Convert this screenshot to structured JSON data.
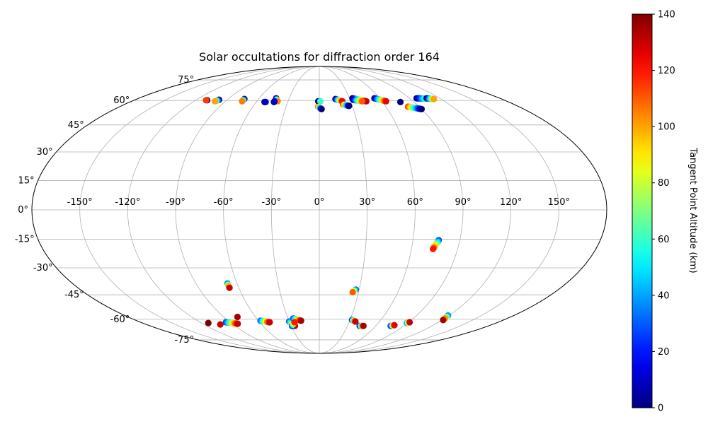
{
  "chart_data": {
    "type": "scatter",
    "projection": "mollweide",
    "title": "Solar occultations for diffraction order 164",
    "xlabel": "",
    "ylabel": "",
    "xlim": [
      -180,
      180
    ],
    "ylim": [
      -90,
      90
    ],
    "grid": true,
    "lon_ticks": [
      -150,
      -120,
      -90,
      -60,
      -30,
      0,
      30,
      60,
      90,
      120,
      150
    ],
    "lon_tick_labels": [
      "-150°",
      "-120°",
      "-90°",
      "-60°",
      "-30°",
      "0°",
      "30°",
      "60°",
      "90°",
      "120°",
      "150°"
    ],
    "lat_ticks": [
      -75,
      -60,
      -45,
      -30,
      -15,
      0,
      15,
      30,
      45,
      60,
      75
    ],
    "lat_tick_labels": [
      "-75°",
      "-60°",
      "-45°",
      "-30°",
      "-15°",
      "0°",
      "15°",
      "30°",
      "45°",
      "60°",
      "75°"
    ],
    "colorbar": {
      "label": "Tangent Point Altitude (km)",
      "colormap": "jet",
      "range": [
        0,
        140
      ],
      "ticks": [
        0,
        20,
        40,
        60,
        80,
        100,
        120,
        140
      ],
      "tick_labels": [
        "0",
        "20",
        "40",
        "60",
        "80",
        "100",
        "120",
        "140"
      ]
    },
    "tracks": [
      {
        "lon_start": -109,
        "lat_start": 60.2,
        "lon_end": -110,
        "lat_end": 60.2,
        "alt_start": 0,
        "alt_end": 115,
        "count": 2
      },
      {
        "lon_start": -98,
        "lat_start": 60.5,
        "lon_end": -100,
        "lat_end": 59.5,
        "alt_start": 0,
        "alt_end": 100,
        "count": 4
      },
      {
        "lon_start": -74,
        "lat_start": 61.0,
        "lon_end": -74,
        "lat_end": 59.5,
        "alt_start": 0,
        "alt_end": 105,
        "count": 4
      },
      {
        "lon_start": -52,
        "lat_start": 59.0,
        "lon_end": -51,
        "lat_end": 59.0,
        "alt_start": 0,
        "alt_end": 10,
        "count": 2
      },
      {
        "lon_start": -43,
        "lat_start": 61.5,
        "lon_end": -40,
        "lat_end": 59.5,
        "alt_start": 0,
        "alt_end": 105,
        "count": 6
      },
      {
        "lon_start": -43,
        "lat_start": 59.0,
        "lon_end": -43,
        "lat_end": 59.5,
        "alt_start": 0,
        "alt_end": 10,
        "count": 2
      },
      {
        "lon_start": -1,
        "lat_start": 59.5,
        "lon_end": 1,
        "lat_end": 59.5,
        "alt_start": 0,
        "alt_end": 60,
        "count": 2
      },
      {
        "lon_start": -1,
        "lat_start": 56.0,
        "lon_end": 2,
        "lat_end": 54.5,
        "alt_start": 110,
        "alt_end": 0,
        "count": 6
      },
      {
        "lon_start": 16,
        "lat_start": 61.0,
        "lon_end": 22,
        "lat_end": 59.5,
        "alt_start": 0,
        "alt_end": 125,
        "count": 7
      },
      {
        "lon_start": 22,
        "lat_start": 57.5,
        "lon_end": 27,
        "lat_end": 56.5,
        "alt_start": 115,
        "alt_end": 0,
        "count": 6
      },
      {
        "lon_start": 33,
        "lat_start": 61.5,
        "lon_end": 45,
        "lat_end": 59.5,
        "alt_start": 0,
        "alt_end": 130,
        "count": 14
      },
      {
        "lon_start": 33,
        "lat_start": 60.5,
        "lon_end": 41,
        "lat_end": 59.5,
        "alt_start": 0,
        "alt_end": 110,
        "count": 8
      },
      {
        "lon_start": 55,
        "lat_start": 61.5,
        "lon_end": 64,
        "lat_end": 59.5,
        "alt_start": 0,
        "alt_end": 125,
        "count": 12
      },
      {
        "lon_start": 77,
        "lat_start": 59.0,
        "lon_end": 77,
        "lat_end": 59.0,
        "alt_start": 0,
        "alt_end": 0,
        "count": 1
      },
      {
        "lon_start": 80,
        "lat_start": 56.0,
        "lon_end": 90,
        "lat_end": 54.5,
        "alt_start": 115,
        "alt_end": 0,
        "count": 12
      },
      {
        "lon_start": 97,
        "lat_start": 61.5,
        "lon_end": 111,
        "lat_end": 61.0,
        "alt_start": 0,
        "alt_end": 100,
        "count": 14
      },
      {
        "lon_start": 107,
        "lat_start": 61.5,
        "lon_end": 113,
        "lat_end": 61.0,
        "alt_start": 0,
        "alt_end": 100,
        "count": 6
      },
      {
        "lon_start": 76.5,
        "lat_start": -15.5,
        "lon_end": 74,
        "lat_end": -20.0,
        "alt_start": 25,
        "alt_end": 120,
        "count": 12
      },
      {
        "lon_start": -67,
        "lat_start": -38.5,
        "lon_end": -67,
        "lat_end": -41.0,
        "alt_start": 40,
        "alt_end": 130,
        "count": 4
      },
      {
        "lon_start": 27.5,
        "lat_start": -42.0,
        "lon_end": 25.5,
        "lat_end": -43.5,
        "alt_start": 30,
        "alt_end": 110,
        "count": 4
      },
      {
        "lon_start": -113,
        "lat_start": -62.5,
        "lon_end": -113,
        "lat_end": -62.5,
        "alt_start": 140,
        "alt_end": 140,
        "count": 1
      },
      {
        "lon_start": -103,
        "lat_start": -63.5,
        "lon_end": -103,
        "lat_end": -63.5,
        "alt_start": 130,
        "alt_end": 130,
        "count": 1
      },
      {
        "lon_start": -94,
        "lat_start": -62.0,
        "lon_end": -84,
        "lat_end": -63.0,
        "alt_start": 25,
        "alt_end": 130,
        "count": 10
      },
      {
        "lon_start": -77,
        "lat_start": -58.5,
        "lon_end": -77,
        "lat_end": -58.5,
        "alt_start": 135,
        "alt_end": 135,
        "count": 1
      },
      {
        "lon_start": -58,
        "lat_start": -61.0,
        "lon_end": -50,
        "lat_end": -62.0,
        "alt_start": 30,
        "alt_end": 130,
        "count": 8
      },
      {
        "lon_start": -30,
        "lat_start": -61.5,
        "lon_end": -26,
        "lat_end": -64.5,
        "alt_start": 30,
        "alt_end": 130,
        "count": 6
      },
      {
        "lon_start": -25,
        "lat_start": -59.5,
        "lon_end": -18,
        "lat_end": -61.0,
        "alt_start": 30,
        "alt_end": 135,
        "count": 6
      },
      {
        "lon_start": -29,
        "lat_start": -64.5,
        "lon_end": -25,
        "lat_end": -62.0,
        "alt_start": 25,
        "alt_end": 120,
        "count": 4
      },
      {
        "lon_start": 32,
        "lat_start": -60.5,
        "lon_end": 36,
        "lat_end": -61.5,
        "alt_start": 25,
        "alt_end": 130,
        "count": 5
      },
      {
        "lon_start": 43,
        "lat_start": -64.5,
        "lon_end": 47,
        "lat_end": -64.5,
        "alt_start": 25,
        "alt_end": 135,
        "count": 4
      },
      {
        "lon_start": 76,
        "lat_start": -64.5,
        "lon_end": 79,
        "lat_end": -64.0,
        "alt_start": 30,
        "alt_end": 125,
        "count": 3
      },
      {
        "lon_start": 89,
        "lat_start": -62.5,
        "lon_end": 91,
        "lat_end": -62.0,
        "alt_start": 45,
        "alt_end": 130,
        "count": 3
      },
      {
        "lon_start": 119,
        "lat_start": -57.5,
        "lon_end": 121,
        "lat_end": -60.5,
        "alt_start": 40,
        "alt_end": 135,
        "count": 4
      }
    ]
  }
}
